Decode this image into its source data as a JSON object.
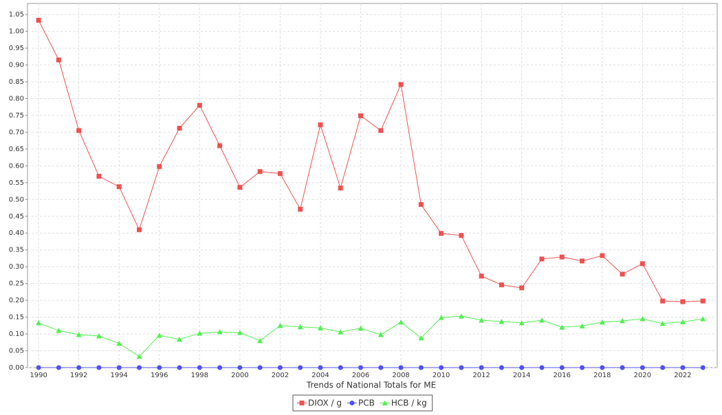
{
  "chart_data": {
    "type": "line",
    "x_label": "Trends of National Totals for ME",
    "x": [
      1990,
      1991,
      1992,
      1993,
      1994,
      1995,
      1996,
      1997,
      1998,
      1999,
      2000,
      2001,
      2002,
      2003,
      2004,
      2005,
      2006,
      2007,
      2008,
      2009,
      2010,
      2011,
      2012,
      2013,
      2014,
      2015,
      2016,
      2017,
      2018,
      2019,
      2020,
      2021,
      2022,
      2023
    ],
    "series": [
      {
        "name": "DIOX / g",
        "color": "#f05050",
        "marker": "square",
        "values": [
          1.033,
          0.915,
          0.705,
          0.569,
          0.538,
          0.41,
          0.598,
          0.712,
          0.78,
          0.66,
          0.536,
          0.583,
          0.577,
          0.471,
          0.722,
          0.534,
          0.749,
          0.705,
          0.842,
          0.485,
          0.399,
          0.393,
          0.272,
          0.246,
          0.237,
          0.323,
          0.329,
          0.317,
          0.333,
          0.278,
          0.309,
          0.198,
          0.196,
          0.198
        ]
      },
      {
        "name": "PCB",
        "color": "#5050f0",
        "marker": "circle",
        "values": [
          0,
          0,
          0,
          0,
          0,
          0,
          0,
          0,
          0,
          0,
          0,
          0,
          0,
          0,
          0,
          0,
          0,
          0,
          0,
          0,
          0,
          0,
          0,
          0,
          0,
          0,
          0,
          0,
          0,
          0,
          0,
          0,
          0,
          0
        ]
      },
      {
        "name": "HCB / kg",
        "color": "#50f050",
        "marker": "triangle",
        "values": [
          0.133,
          0.11,
          0.098,
          0.094,
          0.072,
          0.033,
          0.096,
          0.084,
          0.102,
          0.106,
          0.104,
          0.08,
          0.125,
          0.121,
          0.118,
          0.106,
          0.117,
          0.098,
          0.135,
          0.088,
          0.149,
          0.153,
          0.141,
          0.137,
          0.133,
          0.141,
          0.12,
          0.124,
          0.135,
          0.139,
          0.145,
          0.131,
          0.136,
          0.145
        ]
      }
    ],
    "xlim": [
      1989.45,
      2023.71
    ],
    "xticks": [
      1990,
      1992,
      1994,
      1996,
      1998,
      2000,
      2002,
      2004,
      2006,
      2008,
      2010,
      2012,
      2014,
      2016,
      2018,
      2020,
      2022
    ],
    "ylim": [
      0,
      1.083
    ],
    "yticks": [
      {
        "value": 0,
        "label": "0.00"
      },
      {
        "value": 0.05,
        "label": "0.05"
      },
      {
        "value": 0.1,
        "label": "0.10"
      },
      {
        "value": 0.15,
        "label": "0.15"
      },
      {
        "value": 0.2,
        "label": "0.20"
      },
      {
        "value": 0.25,
        "label": "0.25"
      },
      {
        "value": 0.3,
        "label": "0.30"
      },
      {
        "value": 0.35,
        "label": "0.35"
      },
      {
        "value": 0.4,
        "label": "0.40"
      },
      {
        "value": 0.45,
        "label": "0.45"
      },
      {
        "value": 0.5,
        "label": "0.50"
      },
      {
        "value": 0.55,
        "label": "0.55"
      },
      {
        "value": 0.6,
        "label": "0.60"
      },
      {
        "value": 0.65,
        "label": "0.65"
      },
      {
        "value": 0.7,
        "label": "0.70"
      },
      {
        "value": 0.75,
        "label": "0.75"
      },
      {
        "value": 0.8,
        "label": "0.80"
      },
      {
        "value": 0.85,
        "label": "0.85"
      },
      {
        "value": 0.9,
        "label": "0.90"
      },
      {
        "value": 0.95,
        "label": "0.95"
      },
      {
        "value": 1,
        "label": "1.00"
      },
      {
        "value": 1.05,
        "label": "1.05"
      }
    ],
    "grid": true,
    "legend": "bottom"
  }
}
